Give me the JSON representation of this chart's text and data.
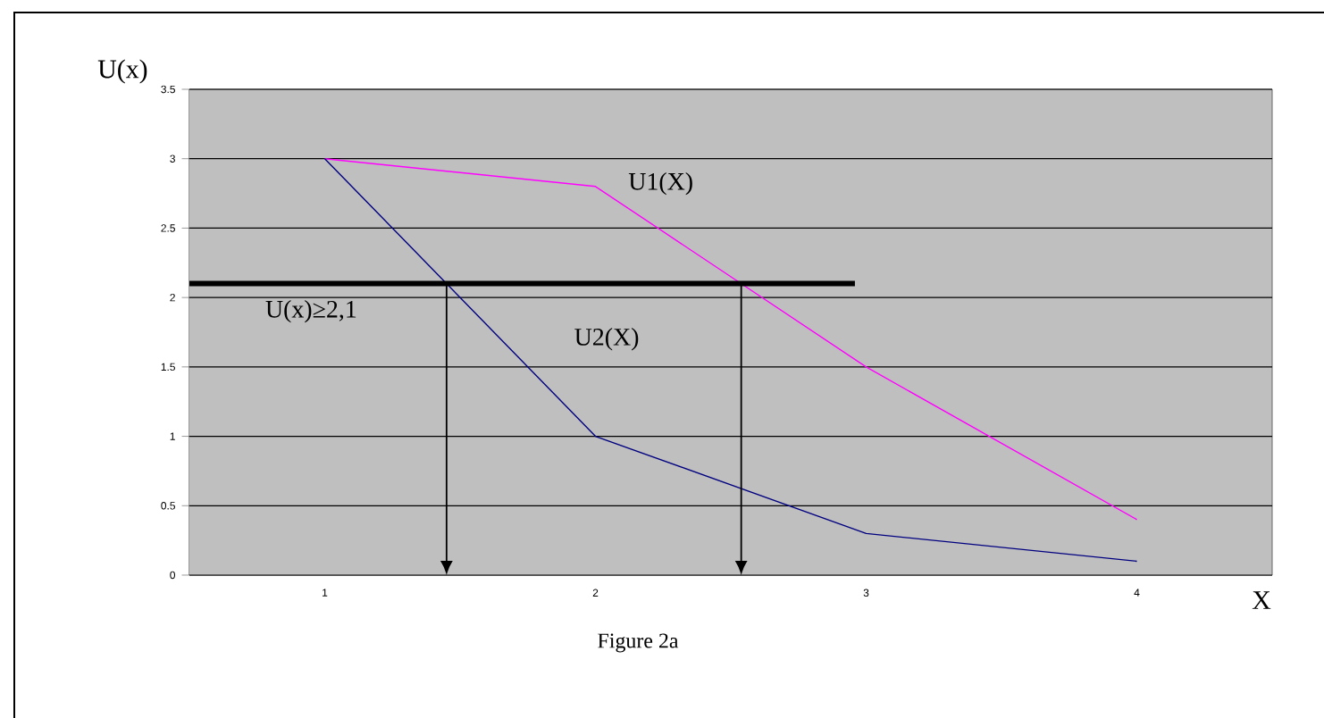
{
  "chart_data": {
    "type": "line",
    "categories": [
      "1",
      "2",
      "3",
      "4"
    ],
    "ylabel": "U(x)",
    "xlabel": "X",
    "series": [
      {
        "name": "U1(X)",
        "color": "#ff00ff",
        "values": [
          3,
          2.8,
          1.5,
          0.4
        ]
      },
      {
        "name": "U2(X)",
        "color": "#000080",
        "values": [
          3,
          1,
          0.3,
          0.1
        ]
      }
    ],
    "ylim": [
      0,
      3.5
    ],
    "yticks": [
      0,
      0.5,
      1,
      1.5,
      2,
      2.5,
      3,
      3.5
    ],
    "grid": "y",
    "legend": false,
    "marker": "none",
    "ref_lines": [
      {
        "axis": "y",
        "value": 2.1,
        "label": "U(x)≥2,1",
        "color": "#000000"
      }
    ],
    "annotations": [
      "Figure 2a"
    ]
  }
}
